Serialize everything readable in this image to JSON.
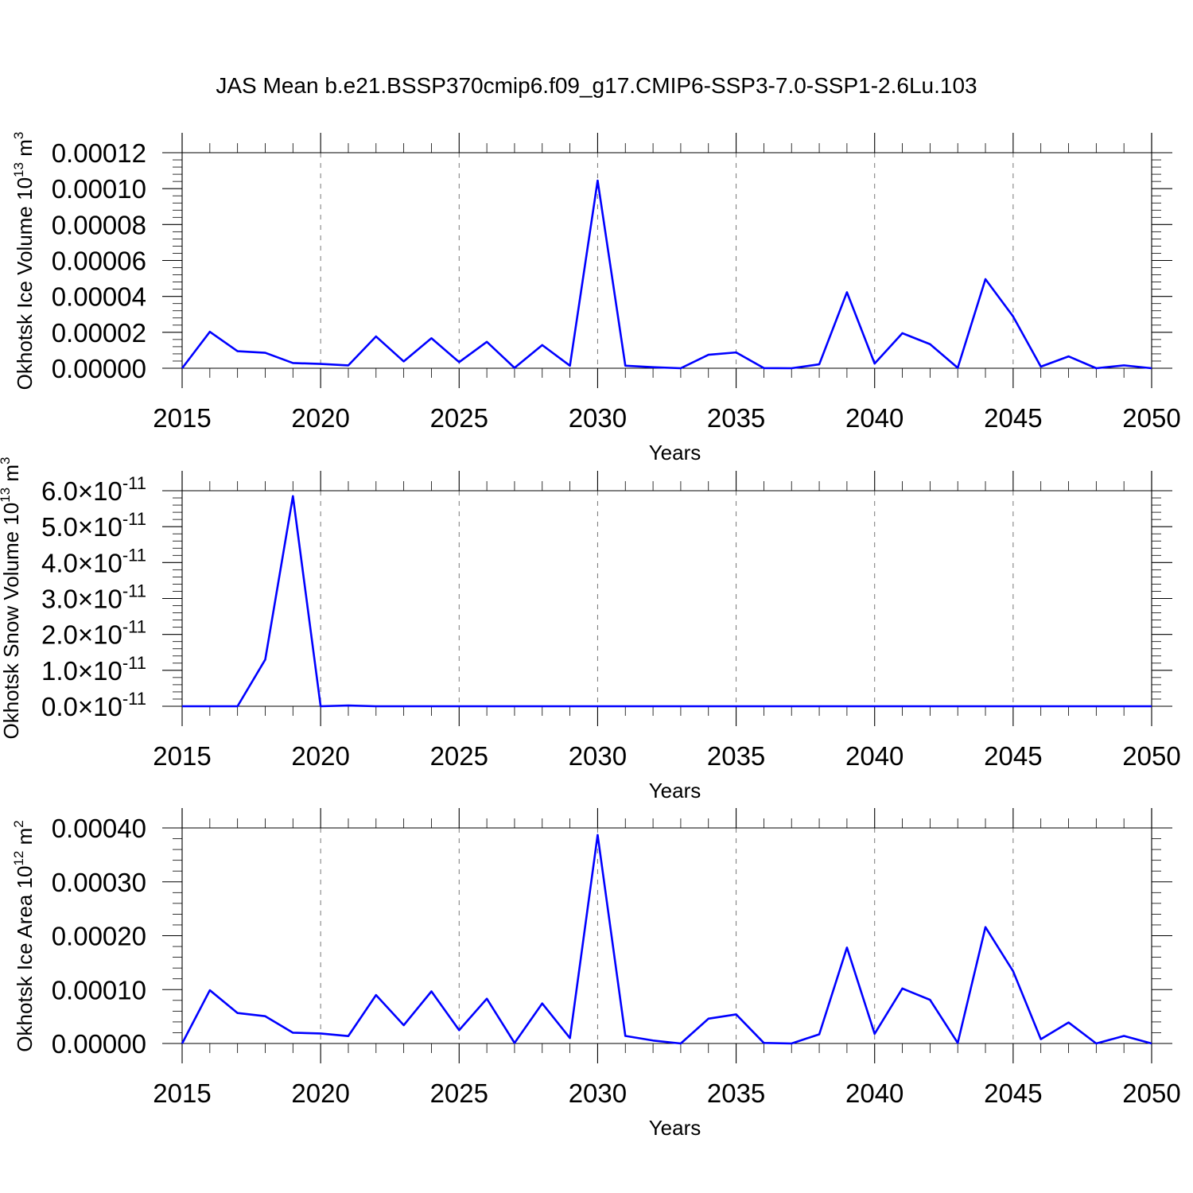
{
  "title": "JAS Mean b.e21.BSSP370cmip6.f09_g17.CMIP6-SSP3-7.0-SSP1-2.6Lu.103",
  "line_color": "#0000ff",
  "chart_data": [
    {
      "type": "line",
      "xlabel": "Years",
      "ylabel": "Okhotsk Ice Volume 10",
      "ylabel_exp": "13",
      "ylabel_unit": " m",
      "ylabel_unit_exp": "3",
      "xlim": [
        2015,
        2050
      ],
      "ylim": [
        0,
        0.00012
      ],
      "xticks": [
        2015,
        2020,
        2025,
        2030,
        2035,
        2040,
        2045,
        2050
      ],
      "xtick_labels": [
        "2015",
        "2020",
        "2025",
        "2030",
        "2035",
        "2040",
        "2045",
        "2050"
      ],
      "yticks": [
        0,
        2e-05,
        4e-05,
        6e-05,
        8e-05,
        0.0001,
        0.00012
      ],
      "ytick_labels": [
        "0.00000",
        "0.00002",
        "0.00004",
        "0.00006",
        "0.00008",
        "0.00010",
        "0.00012"
      ],
      "grid": "vertical dashed at major x ticks",
      "x": [
        2015,
        2016,
        2017,
        2018,
        2019,
        2020,
        2021,
        2022,
        2023,
        2024,
        2025,
        2026,
        2027,
        2028,
        2029,
        2030,
        2031,
        2032,
        2033,
        2034,
        2035,
        2036,
        2037,
        2038,
        2039,
        2040,
        2041,
        2042,
        2043,
        2044,
        2045,
        2046,
        2047,
        2048,
        2049,
        2050
      ],
      "y": [
        0.0,
        2.03e-05,
        9.5e-06,
        8.6e-06,
        2.9e-06,
        2.4e-06,
        1.6e-06,
        1.77e-05,
        3.8e-06,
        1.67e-05,
        3.4e-06,
        1.47e-05,
        2e-07,
        1.29e-05,
        1.4e-06,
        0.0001045,
        1.4e-06,
        6e-07,
        0.0,
        7.5e-06,
        8.8e-06,
        1e-07,
        0.0,
        2.2e-06,
        4.23e-05,
        2.6e-06,
        1.95e-05,
        1.34e-05,
        2e-07,
        4.96e-05,
        2.88e-05,
        9e-07,
        6.6e-06,
        0.0,
        1.6e-06,
        0.0
      ]
    },
    {
      "type": "line",
      "xlabel": "Years",
      "ylabel": "Okhotsk Snow Volume 10",
      "ylabel_exp": "13",
      "ylabel_unit": " m",
      "ylabel_unit_exp": "3",
      "xlim": [
        2015,
        2050
      ],
      "ylim": [
        0,
        6e-11
      ],
      "xticks": [
        2015,
        2020,
        2025,
        2030,
        2035,
        2040,
        2045,
        2050
      ],
      "xtick_labels": [
        "2015",
        "2020",
        "2025",
        "2030",
        "2035",
        "2040",
        "2045",
        "2050"
      ],
      "yticks": [
        0,
        1e-11,
        2e-11,
        3e-11,
        4e-11,
        5e-11,
        6e-11
      ],
      "ytick_mantissas": [
        "0.0",
        "1.0",
        "2.0",
        "3.0",
        "4.0",
        "5.0",
        "6.0"
      ],
      "ytick_times": "×10",
      "ytick_exponent": "-11",
      "grid": "vertical dashed at major x ticks",
      "x": [
        2015,
        2016,
        2017,
        2018,
        2019,
        2020,
        2021,
        2022,
        2023,
        2024,
        2025,
        2026,
        2027,
        2028,
        2029,
        2030,
        2031,
        2032,
        2033,
        2034,
        2035,
        2036,
        2037,
        2038,
        2039,
        2040,
        2041,
        2042,
        2043,
        2044,
        2045,
        2046,
        2047,
        2048,
        2049,
        2050
      ],
      "y": [
        0,
        0,
        0,
        1.3e-11,
        5.85e-11,
        0,
        2e-13,
        0,
        0,
        0,
        0,
        0,
        0,
        0,
        0,
        0,
        0,
        0,
        0,
        0,
        0,
        0,
        0,
        0,
        0,
        0,
        0,
        0,
        0,
        0,
        0,
        0,
        0,
        0,
        0,
        0
      ]
    },
    {
      "type": "line",
      "xlabel": "Years",
      "ylabel": "Okhotsk Ice Area 10",
      "ylabel_exp": "12",
      "ylabel_unit": " m",
      "ylabel_unit_exp": "2",
      "xlim": [
        2015,
        2050
      ],
      "ylim": [
        0,
        0.0004
      ],
      "xticks": [
        2015,
        2020,
        2025,
        2030,
        2035,
        2040,
        2045,
        2050
      ],
      "xtick_labels": [
        "2015",
        "2020",
        "2025",
        "2030",
        "2035",
        "2040",
        "2045",
        "2050"
      ],
      "yticks": [
        0,
        0.0001,
        0.0002,
        0.0003,
        0.0004
      ],
      "ytick_labels": [
        "0.00000",
        "0.00010",
        "0.00020",
        "0.00030",
        "0.00040"
      ],
      "grid": "vertical dashed at major x ticks",
      "x": [
        2015,
        2016,
        2017,
        2018,
        2019,
        2020,
        2021,
        2022,
        2023,
        2024,
        2025,
        2026,
        2027,
        2028,
        2029,
        2030,
        2031,
        2032,
        2033,
        2034,
        2035,
        2036,
        2037,
        2038,
        2039,
        2040,
        2041,
        2042,
        2043,
        2044,
        2045,
        2046,
        2047,
        2048,
        2049,
        2050
      ],
      "y": [
        0.0,
        9.88e-05,
        5.65e-05,
        5.06e-05,
        2e-05,
        1.85e-05,
        1.38e-05,
        8.99e-05,
        3.39e-05,
        9.67e-05,
        2.47e-05,
        8.31e-05,
        1e-06,
        7.43e-05,
        1e-05,
        0.000387,
        1.4e-05,
        5.5e-06,
        0.0,
        4.6e-05,
        5.4e-05,
        1e-06,
        0.0,
        1.7e-05,
        0.000178,
        1.8e-05,
        0.000102,
        8.1e-05,
        1e-06,
        0.000216,
        0.000134,
        8e-06,
        3.9e-05,
        0.0,
        1.4e-05,
        0.0
      ]
    }
  ]
}
